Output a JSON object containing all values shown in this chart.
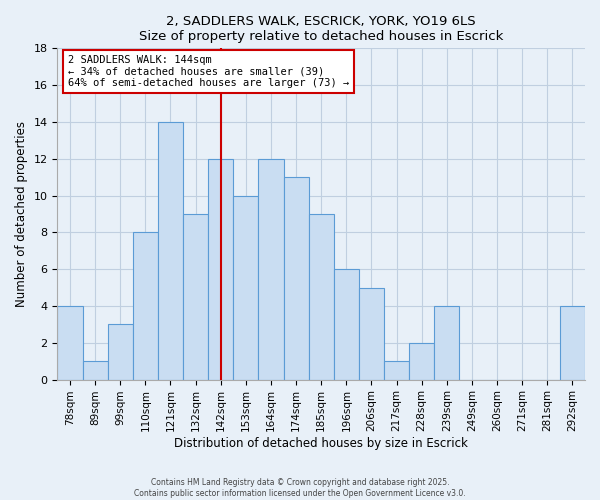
{
  "title": "2, SADDLERS WALK, ESCRICK, YORK, YO19 6LS",
  "subtitle": "Size of property relative to detached houses in Escrick",
  "xlabel": "Distribution of detached houses by size in Escrick",
  "ylabel": "Number of detached properties",
  "bar_labels": [
    "78sqm",
    "89sqm",
    "99sqm",
    "110sqm",
    "121sqm",
    "132sqm",
    "142sqm",
    "153sqm",
    "164sqm",
    "174sqm",
    "185sqm",
    "196sqm",
    "206sqm",
    "217sqm",
    "228sqm",
    "239sqm",
    "249sqm",
    "260sqm",
    "271sqm",
    "281sqm",
    "292sqm"
  ],
  "bar_heights": [
    4,
    1,
    3,
    8,
    14,
    9,
    12,
    10,
    12,
    11,
    9,
    6,
    5,
    1,
    2,
    4,
    0,
    0,
    0,
    0,
    4
  ],
  "bar_color": "#c9ddf2",
  "bar_edge_color": "#5b9bd5",
  "vline_x_index": 6,
  "vline_color": "#cc0000",
  "annotation_title": "2 SADDLERS WALK: 144sqm",
  "annotation_line1": "← 34% of detached houses are smaller (39)",
  "annotation_line2": "64% of semi-detached houses are larger (73) →",
  "annotation_box_edge": "#cc0000",
  "ylim": [
    0,
    18
  ],
  "yticks": [
    0,
    2,
    4,
    6,
    8,
    10,
    12,
    14,
    16,
    18
  ],
  "footer1": "Contains HM Land Registry data © Crown copyright and database right 2025.",
  "footer2": "Contains public sector information licensed under the Open Government Licence v3.0.",
  "bg_color": "#e8f0f8",
  "plot_bg_color": "#e8f0f8",
  "grid_color": "#c0cfe0"
}
